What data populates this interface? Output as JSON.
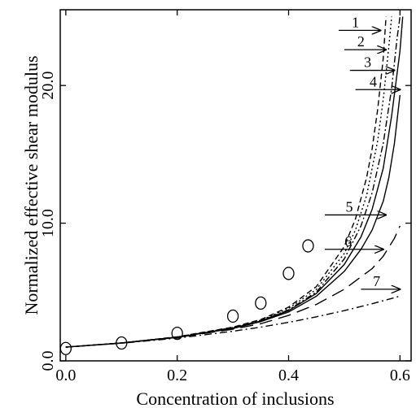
{
  "chart_data": {
    "type": "line",
    "title": "",
    "xlabel": "Concentration of inclusions",
    "ylabel": "Normalized effective shear modulus",
    "xlim": [
      -0.01,
      0.62
    ],
    "ylim": [
      0,
      25.5
    ],
    "xticks": [
      0.0,
      0.2,
      0.4,
      0.6
    ],
    "xtick_labels": [
      "0.0",
      "0.2",
      "0.4",
      "0.6"
    ],
    "yticks": [
      0.0,
      10.0,
      20.0
    ],
    "ytick_labels": [
      "0.0",
      "10.0",
      "20.0"
    ],
    "grid": false,
    "series": [
      {
        "id": "1",
        "style": "dashed",
        "x": [
          0,
          0.1,
          0.2,
          0.3,
          0.35,
          0.4,
          0.45,
          0.5,
          0.52,
          0.54,
          0.55,
          0.56,
          0.57,
          0.575
        ],
        "y": [
          1.0,
          1.3,
          1.75,
          2.45,
          3.0,
          3.9,
          5.4,
          8.3,
          10.3,
          13.3,
          15.4,
          18.3,
          22.0,
          25.0
        ]
      },
      {
        "id": "2",
        "style": "dotted",
        "x": [
          0,
          0.1,
          0.2,
          0.3,
          0.35,
          0.4,
          0.45,
          0.5,
          0.52,
          0.54,
          0.56,
          0.57,
          0.58,
          0.585
        ],
        "y": [
          1.0,
          1.3,
          1.74,
          2.42,
          2.95,
          3.8,
          5.2,
          7.8,
          9.5,
          12.0,
          16.0,
          19.0,
          22.8,
          25.0
        ]
      },
      {
        "id": "3",
        "style": "dash-dot",
        "x": [
          0,
          0.1,
          0.2,
          0.3,
          0.35,
          0.4,
          0.45,
          0.5,
          0.53,
          0.55,
          0.57,
          0.585,
          0.595,
          0.6
        ],
        "y": [
          1.0,
          1.3,
          1.73,
          2.4,
          2.92,
          3.7,
          5.0,
          7.4,
          9.8,
          12.2,
          15.8,
          19.8,
          23.5,
          25.0
        ]
      },
      {
        "id": "4",
        "style": "solid",
        "x": [
          0,
          0.1,
          0.2,
          0.3,
          0.35,
          0.4,
          0.45,
          0.5,
          0.53,
          0.55,
          0.57,
          0.585,
          0.6,
          0.605
        ],
        "y": [
          1.0,
          1.3,
          1.72,
          2.38,
          2.9,
          3.65,
          4.9,
          7.0,
          9.0,
          11.0,
          14.0,
          17.8,
          22.5,
          25.0
        ]
      },
      {
        "id": "5",
        "style": "solid",
        "x": [
          0,
          0.1,
          0.2,
          0.3,
          0.35,
          0.4,
          0.45,
          0.5,
          0.53,
          0.55,
          0.57,
          0.58,
          0.59,
          0.6
        ],
        "y": [
          1.0,
          1.3,
          1.72,
          2.35,
          2.85,
          3.55,
          4.7,
          6.5,
          8.1,
          9.5,
          11.6,
          13.3,
          15.8,
          19.3
        ]
      },
      {
        "id": "6",
        "style": "long-dash",
        "x": [
          0,
          0.1,
          0.2,
          0.3,
          0.35,
          0.4,
          0.45,
          0.5,
          0.55,
          0.57,
          0.59,
          0.6
        ],
        "y": [
          1.0,
          1.3,
          1.7,
          2.3,
          2.7,
          3.3,
          4.1,
          5.2,
          6.7,
          7.6,
          8.9,
          9.8
        ]
      },
      {
        "id": "7",
        "style": "dash-dot-sparse",
        "x": [
          0,
          0.1,
          0.2,
          0.3,
          0.35,
          0.4,
          0.45,
          0.5,
          0.55,
          0.6
        ],
        "y": [
          1.0,
          1.28,
          1.65,
          2.15,
          2.45,
          2.8,
          3.2,
          3.65,
          4.15,
          4.7
        ]
      }
    ],
    "markers": {
      "symbol": "open-circle",
      "x": [
        0.0,
        0.1,
        0.2,
        0.3,
        0.35,
        0.4,
        0.435
      ],
      "y": [
        0.9,
        1.3,
        2.0,
        3.25,
        4.2,
        6.35,
        8.35
      ]
    },
    "annotations": [
      {
        "label": "1",
        "arrow_from_x": 0.49,
        "arrow_to_x": 0.565,
        "y": 24.0
      },
      {
        "label": "2",
        "arrow_from_x": 0.5,
        "arrow_to_x": 0.575,
        "y": 22.6
      },
      {
        "label": "3",
        "arrow_from_x": 0.51,
        "arrow_to_x": 0.59,
        "y": 21.1
      },
      {
        "label": "4",
        "arrow_from_x": 0.52,
        "arrow_to_x": 0.6,
        "y": 19.7
      },
      {
        "label": "5",
        "arrow_from_x": 0.465,
        "arrow_to_x": 0.575,
        "y": 10.6
      },
      {
        "label": "6",
        "arrow_from_x": 0.465,
        "arrow_to_x": 0.57,
        "y": 8.1
      },
      {
        "label": "7",
        "arrow_from_x": 0.53,
        "arrow_to_x": 0.6,
        "y": 5.2
      }
    ]
  }
}
